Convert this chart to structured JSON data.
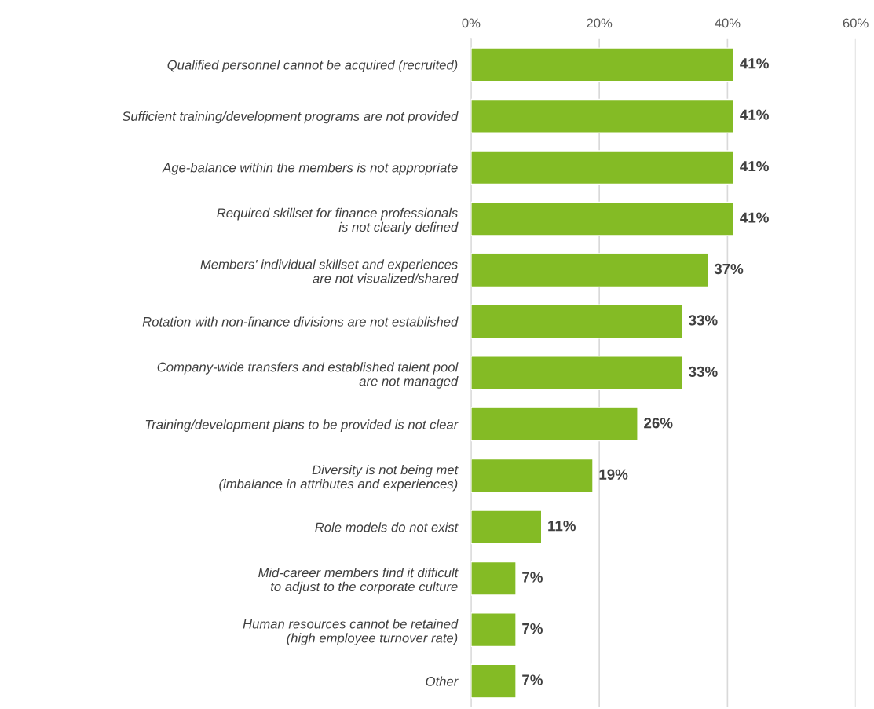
{
  "chart_data": {
    "type": "bar",
    "orientation": "horizontal",
    "categories": [
      "Qualified personnel cannot be acquired (recruited)",
      "Sufficient training/development programs are not provided",
      "Age-balance within the members is not appropriate",
      "Required skillset for finance professionals\nis not clearly defined",
      "Members' individual skillset and experiences\nare not visualized/shared",
      "Rotation with non-finance divisions are not established",
      "Company-wide transfers and established talent pool\nare not managed",
      "Training/development plans to be provided is not clear",
      "Diversity is not being met\n(imbalance in attributes and experiences)",
      "Role models do not exist",
      "Mid-career members find it difficult\nto adjust to the corporate culture",
      "Human resources cannot be retained\n(high employee turnover rate)",
      "Other"
    ],
    "values": [
      41,
      41,
      41,
      41,
      37,
      33,
      33,
      26,
      19,
      11,
      7,
      7,
      7
    ],
    "value_labels": [
      "41%",
      "41%",
      "41%",
      "41%",
      "37%",
      "33%",
      "33%",
      "26%",
      "19%",
      "11%",
      "7%",
      "7%",
      "7%"
    ],
    "color": "#84bb25",
    "xlim": [
      0,
      60
    ],
    "xticks": [
      {
        "value": 0,
        "label": "0%"
      },
      {
        "value": 20,
        "label": "20%"
      },
      {
        "value": 40,
        "label": "40%"
      },
      {
        "value": 60,
        "label": "60%"
      }
    ],
    "grid": "x",
    "legend": false
  }
}
